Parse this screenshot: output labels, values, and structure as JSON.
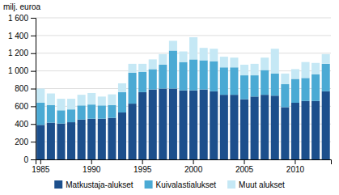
{
  "chart_data": {
    "type": "bar",
    "stacked": true,
    "ylabel": "milj. euroa",
    "categories": [
      "1985",
      null,
      null,
      null,
      null,
      "1990",
      null,
      null,
      null,
      null,
      "1995",
      null,
      null,
      null,
      null,
      "2000",
      null,
      null,
      null,
      null,
      "2005",
      null,
      null,
      null,
      null,
      "2010",
      null,
      null,
      null
    ],
    "series": [
      {
        "name": "Matkustaja-alukset",
        "color": "#1c4f8c",
        "values": [
          390,
          415,
          405,
          420,
          450,
          460,
          460,
          470,
          530,
          630,
          760,
          790,
          800,
          800,
          780,
          780,
          790,
          770,
          730,
          730,
          680,
          710,
          730,
          720,
          590,
          640,
          660,
          660,
          770
        ]
      },
      {
        "name": "Kuivalastialukset",
        "color": "#4baad4",
        "values": [
          250,
          200,
          150,
          145,
          160,
          160,
          150,
          145,
          230,
          350,
          230,
          230,
          270,
          430,
          320,
          350,
          330,
          340,
          310,
          310,
          270,
          240,
          280,
          250,
          260,
          270,
          260,
          300,
          310
        ]
      },
      {
        "name": "Muut alukset",
        "color": "#c5e8f5",
        "values": [
          160,
          130,
          130,
          120,
          120,
          130,
          100,
          120,
          100,
          100,
          90,
          110,
          120,
          110,
          120,
          250,
          140,
          140,
          120,
          110,
          120,
          130,
          140,
          280,
          120,
          110,
          180,
          130,
          110
        ]
      }
    ],
    "ylim": [
      0,
      1600
    ],
    "yticks": [
      0,
      200,
      400,
      600,
      800,
      {
        "value": 1000,
        "label": "1 000"
      },
      {
        "value": 1200,
        "label": "1 200"
      },
      {
        "value": 1400,
        "label": "1 400"
      },
      {
        "value": 1600,
        "label": "1 600"
      }
    ],
    "grid": true,
    "legend": "bottom"
  }
}
